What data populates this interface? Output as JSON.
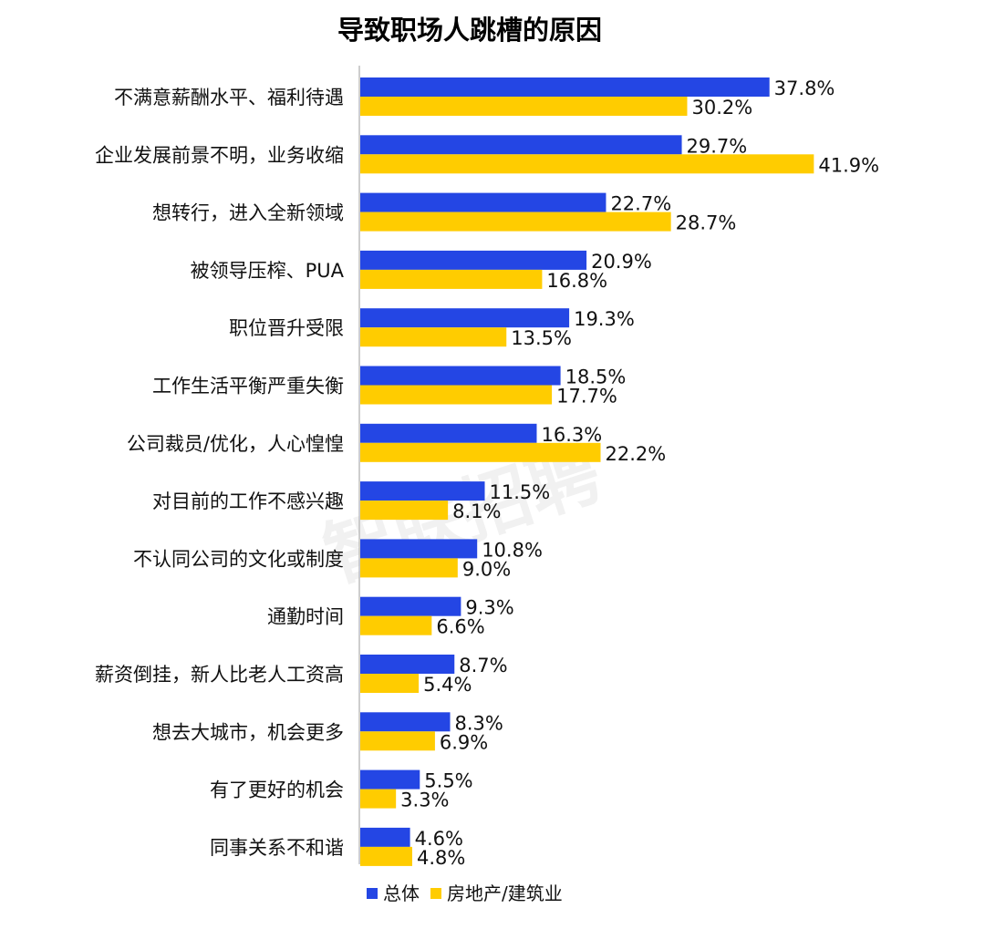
{
  "watermark_text": "智联招聘",
  "chart_data": {
    "type": "bar",
    "orientation": "horizontal",
    "title": "导致职场人跳槽的原因",
    "categories": [
      "不满意薪酬水平、福利待遇",
      "企业发展前景不明，业务收缩",
      "想转行，进入全新领域",
      "被领导压榨、PUA",
      "职位晋升受限",
      "工作生活平衡严重失衡",
      "公司裁员/优化，人心惶惶",
      "对目前的工作不感兴趣",
      "不认同公司的文化或制度",
      "通勤时间",
      "薪资倒挂，新人比老人工资高",
      "想去大城市，机会更多",
      "有了更好的机会",
      "同事关系不和谐"
    ],
    "series": [
      {
        "name": "总体",
        "color": "#2446E4",
        "values": [
          37.8,
          29.7,
          22.7,
          20.9,
          19.3,
          18.5,
          16.3,
          11.5,
          10.8,
          9.3,
          8.7,
          8.3,
          5.5,
          4.6
        ],
        "labels": [
          "37.8%",
          "29.7%",
          "22.7%",
          "20.9%",
          "19.3%",
          "18.5%",
          "16.3%",
          "11.5%",
          "10.8%",
          "9.3%",
          "8.7%",
          "8.3%",
          "5.5%",
          "4.6%"
        ]
      },
      {
        "name": "房地产/建筑业",
        "color": "#FFCC00",
        "values": [
          30.2,
          41.9,
          28.7,
          16.8,
          13.5,
          17.7,
          22.2,
          8.1,
          9.0,
          6.6,
          5.4,
          6.9,
          3.3,
          4.8
        ],
        "labels": [
          "30.2%",
          "41.9%",
          "28.7%",
          "16.8%",
          "13.5%",
          "17.7%",
          "22.2%",
          "8.1%",
          "9.0%",
          "6.6%",
          "5.4%",
          "6.9%",
          "3.3%",
          "4.8%"
        ]
      }
    ],
    "legend_position": "bottom",
    "grid": false
  }
}
